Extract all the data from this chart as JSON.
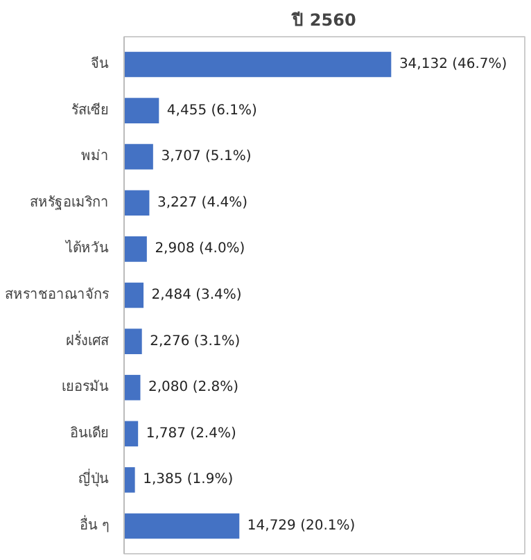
{
  "chart_data": {
    "type": "bar",
    "orientation": "horizontal",
    "title": "ปี 2560",
    "categories": [
      "จีน",
      "รัสเซีย",
      "พม่า",
      "สหรัฐอเมริกา",
      "ไต้หวัน",
      "สหราชอาณาจักร",
      "ฝรั่งเศส",
      "เยอรมัน",
      "อินเดีย",
      "ญี่ปุ่น",
      "อื่น ๆ"
    ],
    "values": [
      34132,
      4455,
      3707,
      3227,
      2908,
      2484,
      2276,
      2080,
      1787,
      1385,
      14729
    ],
    "value_labels": [
      "34,132 (46.7%)",
      "4,455 (6.1%)",
      "3,707 (5.1%)",
      "3,227 (4.4%)",
      "2,908 (4.0%)",
      "2,484 (3.4%)",
      "2,276 (3.1%)",
      "2,080 (2.8%)",
      "1,787 (2.4%)",
      "1,385 (1.9%)",
      "14,729 (20.1%)"
    ],
    "color": "#4472c4",
    "grid": false
  }
}
